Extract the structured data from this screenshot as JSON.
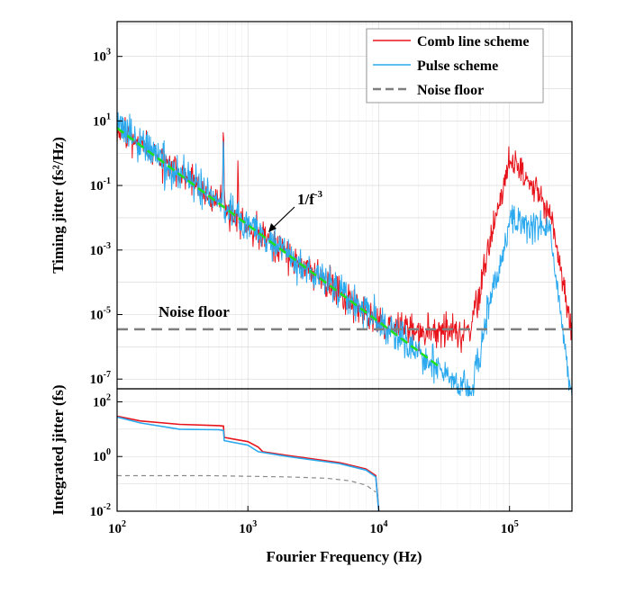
{
  "chart_data": [
    {
      "type": "line",
      "panel": "top",
      "xlabel": "Fourier Frequency (Hz)",
      "ylabel": "Timing jitter (fs²/Hz)",
      "x_scale": "log",
      "y_scale": "log",
      "xlim": [
        100,
        300000
      ],
      "ylim": [
        5e-08,
        12000
      ],
      "y_ticks": [
        {
          "value": 1000,
          "base": "10",
          "exp": "3"
        },
        {
          "value": 10,
          "base": "10",
          "exp": "1"
        },
        {
          "value": 0.1,
          "base": "10",
          "exp": "-1"
        },
        {
          "value": 0.001,
          "base": "10",
          "exp": "-3"
        },
        {
          "value": 1e-05,
          "base": "10",
          "exp": "-5"
        },
        {
          "value": 1e-07,
          "base": "10",
          "exp": "-7"
        }
      ],
      "legend": {
        "position": "top-right",
        "entries": [
          "Comb line scheme",
          "Pulse scheme",
          "Noise floor"
        ]
      },
      "series": [
        {
          "name": "Comb line scheme",
          "color": "#e8141b",
          "description": "PSD follows ~1/f^3 slope, flattens at ~3e-6 fs²/Hz above ~10 kHz, spikes at 100 kHz and 200 kHz",
          "x": [
            100,
            200,
            500,
            1000,
            2000,
            5000,
            8000,
            10000,
            20000,
            50000,
            100000,
            200000,
            300000
          ],
          "y": [
            6,
            0.8,
            0.05,
            0.006,
            0.0008,
            5e-05,
            1e-05,
            6e-06,
            3e-06,
            3e-06,
            0.8,
            0.02,
            3e-06
          ]
        },
        {
          "name": "Pulse scheme",
          "color": "#2aa9ee",
          "description": "PSD follows ~1/f^3 slope down to ~1e-7 fs²/Hz, spikes at 100 kHz and 200 kHz",
          "x": [
            100,
            200,
            500,
            1000,
            2000,
            5000,
            10000,
            20000,
            50000,
            100000,
            200000,
            300000
          ],
          "y": [
            6,
            0.8,
            0.05,
            0.006,
            0.0008,
            5e-05,
            6e-06,
            6e-07,
            4e-08,
            0.006,
            0.006,
            3e-08
          ]
        },
        {
          "name": "Noise floor",
          "color": "#7f7f7f",
          "dashed": true,
          "x": [
            100,
            300000
          ],
          "y": [
            3.5e-06,
            3.5e-06
          ]
        },
        {
          "name": "1/f³ fit",
          "color": "#1ee01e",
          "dashed": true,
          "x": [
            100,
            30000
          ],
          "y": [
            6,
            2.2e-07
          ]
        }
      ],
      "annotations": [
        {
          "text": "1/f",
          "exponent": "-3",
          "points_to": [
            1600,
            0.0012
          ]
        },
        {
          "text": "Noise floor",
          "at": [
            1000,
            1.2e-05
          ]
        }
      ]
    },
    {
      "type": "line",
      "panel": "bottom",
      "xlabel": "Fourier Frequency (Hz)",
      "ylabel": "Integrated jitter (fs)",
      "x_scale": "log",
      "y_scale": "log",
      "xlim": [
        100,
        300000
      ],
      "ylim": [
        0.01,
        300
      ],
      "x_ticks": [
        {
          "value": 100,
          "base": "10",
          "exp": "2"
        },
        {
          "value": 1000,
          "base": "10",
          "exp": "3"
        },
        {
          "value": 10000,
          "base": "10",
          "exp": "4"
        },
        {
          "value": 100000,
          "base": "10",
          "exp": "5"
        }
      ],
      "y_ticks": [
        {
          "value": 100,
          "base": "10",
          "exp": "2"
        },
        {
          "value": 1,
          "base": "10",
          "exp": "0"
        },
        {
          "value": 0.01,
          "base": "10",
          "exp": "-2"
        }
      ],
      "series": [
        {
          "name": "Comb line scheme",
          "color": "#e8141b",
          "x": [
            100,
            150,
            300,
            600,
            650,
            660,
            1000,
            1200,
            1300,
            2000,
            5000,
            8000,
            9500,
            10000
          ],
          "y": [
            30,
            20,
            15,
            13.5,
            13,
            5,
            3.5,
            2.2,
            1.5,
            1.1,
            0.6,
            0.35,
            0.2,
            0.01
          ]
        },
        {
          "name": "Pulse scheme",
          "color": "#2aa9ee",
          "x": [
            100,
            150,
            300,
            600,
            650,
            660,
            1000,
            1200,
            2000,
            5000,
            8000,
            9500,
            10000
          ],
          "y": [
            28,
            17,
            10,
            9.5,
            9,
            3.8,
            2.6,
            1.5,
            1.0,
            0.55,
            0.32,
            0.18,
            0.01
          ]
        },
        {
          "name": "Noise floor",
          "color": "#8a8a8a",
          "dashed": true,
          "x": [
            100,
            200,
            500,
            1000,
            2000,
            4000,
            6000,
            8000,
            9500
          ],
          "y": [
            0.2,
            0.2,
            0.2,
            0.19,
            0.18,
            0.16,
            0.13,
            0.09,
            0.05
          ]
        }
      ]
    }
  ]
}
